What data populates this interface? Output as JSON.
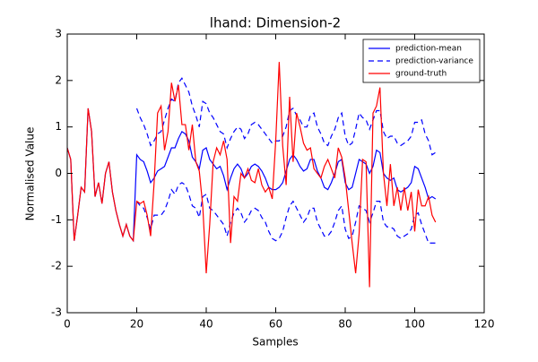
{
  "chart_data": {
    "type": "line",
    "title": "lhand: Dimension-2",
    "xlabel": "Samples",
    "ylabel": "Normalised Value",
    "x": [
      0,
      1,
      2,
      3,
      4,
      5,
      6,
      7,
      8,
      9,
      10,
      11,
      12,
      13,
      14,
      15,
      16,
      17,
      18,
      19,
      20,
      21,
      22,
      23,
      24,
      25,
      26,
      27,
      28,
      29,
      30,
      31,
      32,
      33,
      34,
      35,
      36,
      37,
      38,
      39,
      40,
      41,
      42,
      43,
      44,
      45,
      46,
      47,
      48,
      49,
      50,
      51,
      52,
      53,
      54,
      55,
      56,
      57,
      58,
      59,
      60,
      61,
      62,
      63,
      64,
      65,
      66,
      67,
      68,
      69,
      70,
      71,
      72,
      73,
      74,
      75,
      76,
      77,
      78,
      79,
      80,
      81,
      82,
      83,
      84,
      85,
      86,
      87,
      88,
      89,
      90,
      91,
      92,
      93,
      94,
      95,
      96,
      97,
      98,
      99,
      100,
      101,
      102,
      103,
      104,
      105,
      106
    ],
    "series": [
      {
        "name": "prediction-mean",
        "color": "#0000ff",
        "dashed": false,
        "values": [
          0.55,
          0.3,
          -1.45,
          -0.9,
          -0.3,
          -0.4,
          1.4,
          0.9,
          -0.5,
          -0.2,
          -0.65,
          0.0,
          0.25,
          -0.4,
          -0.8,
          -1.1,
          -1.35,
          -1.1,
          -1.35,
          -1.45,
          0.4,
          0.3,
          0.25,
          0.05,
          -0.2,
          -0.1,
          0.05,
          0.1,
          0.15,
          0.35,
          0.55,
          0.55,
          0.75,
          0.9,
          0.85,
          0.7,
          0.35,
          0.25,
          0.1,
          0.5,
          0.55,
          0.3,
          0.2,
          0.1,
          0.15,
          -0.05,
          -0.35,
          -0.1,
          0.1,
          0.2,
          0.1,
          -0.1,
          0.0,
          0.15,
          0.2,
          0.15,
          0.05,
          -0.1,
          -0.3,
          -0.35,
          -0.35,
          -0.3,
          -0.2,
          0.05,
          0.3,
          0.4,
          0.3,
          0.15,
          0.05,
          0.1,
          0.3,
          0.3,
          0.05,
          -0.1,
          -0.3,
          -0.35,
          -0.2,
          0.0,
          0.25,
          0.3,
          -0.2,
          -0.35,
          -0.3,
          0.0,
          0.3,
          0.25,
          0.2,
          0.0,
          0.15,
          0.5,
          0.45,
          0.0,
          -0.1,
          -0.15,
          -0.1,
          -0.35,
          -0.4,
          -0.35,
          -0.3,
          -0.2,
          0.15,
          0.1,
          -0.1,
          -0.3,
          -0.55,
          -0.5,
          -0.55
        ]
      },
      {
        "name": "prediction-variance",
        "color": "#0000ff",
        "dashed": true,
        "values": [
          null,
          null,
          null,
          null,
          null,
          null,
          null,
          null,
          null,
          null,
          null,
          null,
          null,
          null,
          null,
          null,
          null,
          null,
          null,
          null,
          1.4,
          1.2,
          1.05,
          0.85,
          0.6,
          0.7,
          0.85,
          0.9,
          1.15,
          1.4,
          1.6,
          1.55,
          1.95,
          2.05,
          1.9,
          1.75,
          1.45,
          1.25,
          1.0,
          1.55,
          1.5,
          1.3,
          1.2,
          1.05,
          0.9,
          0.85,
          0.55,
          0.75,
          0.9,
          1.0,
          0.95,
          0.75,
          0.85,
          1.05,
          1.1,
          1.05,
          0.95,
          0.85,
          0.75,
          0.65,
          0.7,
          0.7,
          0.8,
          1.0,
          1.35,
          1.4,
          1.25,
          1.15,
          1.0,
          1.0,
          1.25,
          1.3,
          1.0,
          0.85,
          0.65,
          0.6,
          0.8,
          0.95,
          1.2,
          1.3,
          0.8,
          0.6,
          0.65,
          0.95,
          1.3,
          1.2,
          1.15,
          0.95,
          1.15,
          1.35,
          1.35,
          0.9,
          0.75,
          0.8,
          0.8,
          0.65,
          0.6,
          0.65,
          0.7,
          0.8,
          1.1,
          1.1,
          1.15,
          0.85,
          0.7,
          0.4,
          0.45
        ],
        "lower": [
          null,
          null,
          null,
          null,
          null,
          null,
          null,
          null,
          null,
          null,
          null,
          null,
          null,
          null,
          null,
          null,
          null,
          null,
          null,
          null,
          -0.6,
          -0.7,
          -0.75,
          -0.95,
          -1.2,
          -0.9,
          -0.9,
          -0.9,
          -0.8,
          -0.6,
          -0.35,
          -0.45,
          -0.25,
          -0.2,
          -0.25,
          -0.45,
          -0.7,
          -0.75,
          -0.95,
          -0.5,
          -0.45,
          -0.75,
          -0.8,
          -0.9,
          -1.0,
          -1.1,
          -1.35,
          -1.05,
          -0.85,
          -0.75,
          -0.85,
          -1.05,
          -0.95,
          -0.8,
          -0.75,
          -0.8,
          -0.95,
          -1.05,
          -1.25,
          -1.4,
          -1.45,
          -1.4,
          -1.25,
          -0.95,
          -0.7,
          -0.6,
          -0.75,
          -0.9,
          -1.05,
          -0.95,
          -0.75,
          -0.75,
          -1.05,
          -1.2,
          -1.35,
          -1.35,
          -1.25,
          -1.05,
          -0.8,
          -0.7,
          -1.2,
          -1.4,
          -1.35,
          -1.05,
          -0.7,
          -0.75,
          -0.8,
          -1.05,
          -0.85,
          -0.6,
          -0.6,
          -1.05,
          -1.15,
          -1.15,
          -1.2,
          -1.35,
          -1.4,
          -1.35,
          -1.3,
          -1.2,
          -0.9,
          -0.85,
          -1.1,
          -1.3,
          -1.5,
          -1.5,
          -1.5
        ]
      },
      {
        "name": "ground-truth",
        "color": "#ff0000",
        "dashed": false,
        "values": [
          0.55,
          0.3,
          -1.45,
          -0.9,
          -0.3,
          -0.4,
          1.4,
          0.9,
          -0.5,
          -0.2,
          -0.65,
          0.0,
          0.25,
          -0.4,
          -0.8,
          -1.1,
          -1.35,
          -1.1,
          -1.35,
          -1.45,
          -0.6,
          -0.65,
          -0.6,
          -0.9,
          -1.35,
          -0.2,
          1.3,
          1.45,
          0.5,
          0.9,
          1.95,
          1.55,
          1.9,
          1.05,
          1.05,
          0.5,
          1.05,
          0.25,
          0.05,
          -0.7,
          -2.15,
          -1.1,
          0.25,
          0.55,
          0.4,
          0.7,
          0.3,
          -1.5,
          -0.5,
          -0.6,
          0.0,
          -0.1,
          0.1,
          -0.15,
          -0.2,
          0.1,
          -0.25,
          -0.4,
          -0.3,
          -0.55,
          0.7,
          2.4,
          0.6,
          -0.25,
          1.65,
          0.25,
          1.3,
          1.0,
          0.65,
          0.5,
          0.55,
          0.1,
          0.0,
          -0.1,
          0.15,
          0.3,
          0.1,
          -0.1,
          0.55,
          0.35,
          -0.1,
          -0.8,
          -1.5,
          -2.15,
          -1.3,
          0.3,
          0.25,
          -2.45,
          1.3,
          1.45,
          1.85,
          0.0,
          -0.7,
          0.2,
          -0.7,
          -0.3,
          -0.8,
          -0.3,
          -0.8,
          -0.4,
          -1.25,
          -0.35,
          -0.7,
          -0.7,
          -0.5,
          -0.9,
          -1.05
        ]
      }
    ],
    "xlim": [
      0,
      120
    ],
    "xticks": [
      0,
      20,
      40,
      60,
      80,
      100,
      120
    ],
    "ylim": [
      -3,
      3
    ],
    "yticks": [
      -3,
      -2,
      -1,
      0,
      1,
      2,
      3
    ],
    "grid": false,
    "legend": "upper right"
  }
}
